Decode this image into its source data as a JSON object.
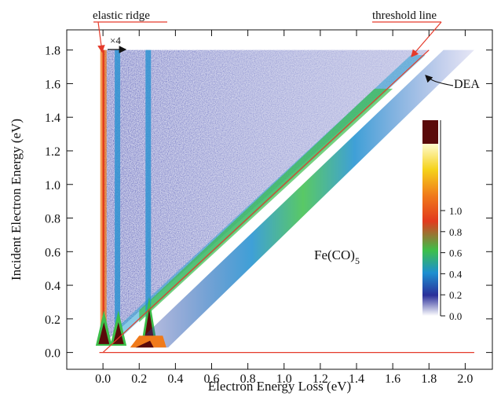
{
  "chart_data": {
    "type": "heatmap",
    "xlabel": "Electron Energy Loss (eV)",
    "ylabel": "Incident Electron Energy (eV)",
    "xlim": [
      -0.2,
      2.15
    ],
    "ylim": [
      -0.1,
      1.92
    ],
    "xticks": [
      {
        "value": 0,
        "label": "0.0"
      },
      {
        "value": 0.2,
        "label": "0.2"
      },
      {
        "value": 0.4,
        "label": "0.4"
      },
      {
        "value": 0.6,
        "label": "0.6"
      },
      {
        "value": 0.8,
        "label": "0.8"
      },
      {
        "value": 1,
        "label": "1.0"
      },
      {
        "value": 1.2,
        "label": "1.2"
      },
      {
        "value": 1.4,
        "label": "1.4"
      },
      {
        "value": 1.6,
        "label": "1.6"
      },
      {
        "value": 1.8,
        "label": "1.8"
      },
      {
        "value": 2,
        "label": "2.0"
      }
    ],
    "yticks": [
      {
        "value": 0,
        "label": "0.0"
      },
      {
        "value": 0.2,
        "label": "0.2"
      },
      {
        "value": 0.4,
        "label": "0.4"
      },
      {
        "value": 0.6,
        "label": "0.6"
      },
      {
        "value": 0.8,
        "label": "0.8"
      },
      {
        "value": 1,
        "label": "1.0"
      },
      {
        "value": 1.2,
        "label": "1.2"
      },
      {
        "value": 1.4,
        "label": "1.4"
      },
      {
        "value": 1.6,
        "label": "1.6"
      },
      {
        "value": 1.8,
        "label": "1.8"
      }
    ],
    "colorbar": {
      "lim": [
        0,
        1
      ],
      "ticks": [
        {
          "value": 0,
          "label": "0.0"
        },
        {
          "value": 0.2,
          "label": "0.2"
        },
        {
          "value": 0.4,
          "label": "0.4"
        },
        {
          "value": 0.6,
          "label": "0.6"
        },
        {
          "value": 0.8,
          "label": "0.8"
        },
        {
          "value": 1,
          "label": "1.0"
        }
      ]
    },
    "annotations": {
      "elastic": "elastic ridge",
      "threshold": "threshold line",
      "scale": "×4",
      "dea": "DEA",
      "molecule": {
        "text": "Fe(CO)",
        "subscript": "5"
      }
    }
  }
}
